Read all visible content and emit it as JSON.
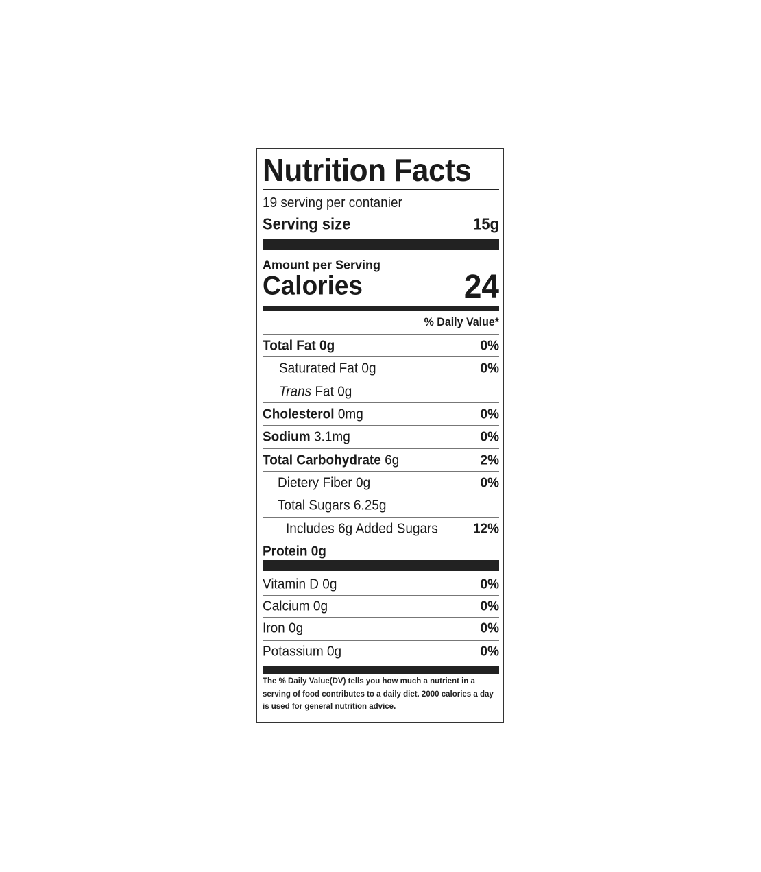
{
  "title": "Nutrition Facts",
  "servings_per_container": "19 serving per contanier",
  "serving_size_label": "Serving size",
  "serving_size_value": "15g",
  "amount_per_serving": "Amount per Serving",
  "calories_label": "Calories",
  "calories_value": "24",
  "daily_value_header": "% Daily Value*",
  "nutrients": [
    {
      "name": "Total Fat",
      "amount": "0g",
      "dv": "0%"
    },
    {
      "name": "Saturated Fat",
      "amount": "0g",
      "dv": "0%"
    },
    {
      "name_italic": "Trans",
      "name": "Fat",
      "amount": "0g",
      "dv": ""
    },
    {
      "name": "Cholesterol",
      "amount": "0mg",
      "dv": "0%"
    },
    {
      "name": "Sodium",
      "amount": "3.1mg",
      "dv": "0%"
    },
    {
      "name": "Total Carbohydrate",
      "amount": "6g",
      "dv": "2%"
    },
    {
      "name": "Dietery Fiber",
      "amount": "0g",
      "dv": "0%"
    },
    {
      "name": "Total Sugars",
      "amount": "6.25g",
      "dv": ""
    },
    {
      "name": "Includes",
      "amount": "6g",
      "suffix": "Added Sugars",
      "dv": "12%"
    },
    {
      "name": "Protein",
      "amount": "0g",
      "dv": ""
    }
  ],
  "vitamins": [
    {
      "name": "Vitamin D",
      "amount": "0g",
      "dv": "0%"
    },
    {
      "name": "Calcium",
      "amount": "0g",
      "dv": "0%"
    },
    {
      "name": "Iron",
      "amount": "0g",
      "dv": "0%"
    },
    {
      "name": "Potassium",
      "amount": "0g",
      "dv": "0%"
    }
  ],
  "footnote": "The % Daily Value(DV) tells you how much a nutrient in a serving of food contributes to a daily diet. 2000 calories a day is used for general nutrition advice."
}
